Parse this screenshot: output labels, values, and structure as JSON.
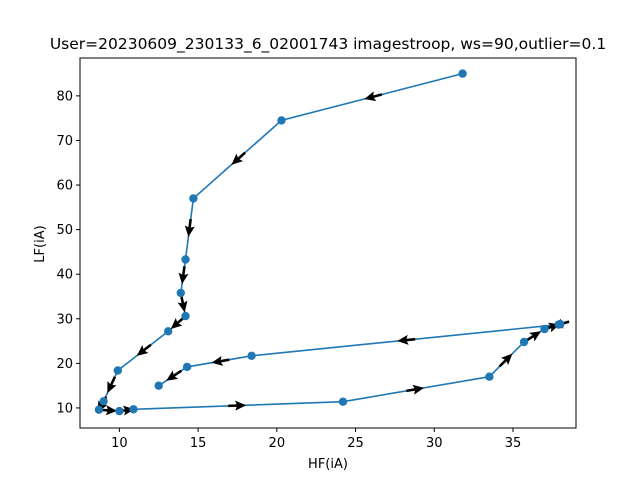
{
  "chart_data": {
    "type": "line",
    "title": "User=20230609_230133_6_02001743 imagestroop, ws=90,outlier=0.1",
    "xlabel": "HF(iA)",
    "ylabel": "LF(iA)",
    "xlim": [
      7.5,
      39.0
    ],
    "ylim": [
      5.5,
      88.5
    ],
    "xticks": [
      10,
      15,
      20,
      25,
      30,
      35
    ],
    "yticks": [
      10,
      20,
      30,
      40,
      50,
      60,
      70,
      80
    ],
    "grid": false,
    "markers": "circle",
    "arrows": true,
    "series": [
      {
        "color": "#1f77b4",
        "points": [
          [
            31.8,
            85.0
          ],
          [
            20.3,
            74.5
          ],
          [
            14.7,
            57.0
          ],
          [
            14.2,
            43.3
          ],
          [
            13.9,
            35.8
          ],
          [
            14.2,
            30.6
          ],
          [
            13.1,
            27.2
          ],
          [
            9.9,
            18.4
          ],
          [
            9.0,
            11.5
          ],
          [
            8.7,
            9.6
          ],
          [
            10.0,
            9.3
          ],
          [
            10.9,
            9.7
          ],
          [
            24.2,
            11.4
          ],
          [
            33.5,
            17.0
          ],
          [
            35.7,
            24.8
          ],
          [
            37.0,
            27.7
          ],
          [
            38.0,
            28.8
          ],
          [
            37.9,
            28.7
          ],
          [
            18.4,
            21.7
          ],
          [
            14.3,
            19.2
          ],
          [
            12.5,
            15.0
          ]
        ]
      }
    ]
  }
}
